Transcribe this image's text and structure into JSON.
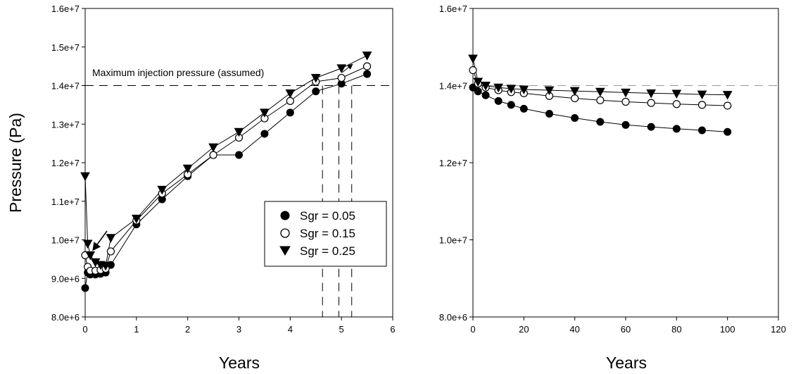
{
  "chart_data": [
    {
      "type": "scatter",
      "xlabel": "Years",
      "ylabel": "Pressure (Pa)",
      "xlim": [
        0,
        6
      ],
      "ylim": [
        8000000,
        16000000
      ],
      "xticks": [
        "0",
        "1",
        "2",
        "3",
        "4",
        "5",
        "6"
      ],
      "yticks": [
        "8.0e+6",
        "9.0e+6",
        "1.0e+7",
        "1.1e+7",
        "1.2e+7",
        "1.3e+7",
        "1.4e+7",
        "1.5e+7",
        "1.6e+7"
      ],
      "annotation": "Maximum injection pressure (assumed)",
      "reference_line": 14000000,
      "vertical_markers": [
        4.63,
        4.95,
        5.2
      ],
      "legend_position": "right-middle",
      "series": [
        {
          "name": "Sgr = 0.05",
          "marker": "filled-circle",
          "x": [
            0,
            0.05,
            0.1,
            0.2,
            0.3,
            0.4,
            0.5,
            1,
            1.5,
            2,
            2.5,
            3,
            3.5,
            4,
            4.5,
            5,
            5.5
          ],
          "y": [
            8750000,
            9150000,
            9100000,
            9100000,
            9120000,
            9150000,
            9350000,
            10400000,
            11050000,
            11650000,
            12200000,
            12200000,
            12750000,
            13300000,
            13850000,
            14050000,
            14300000
          ]
        },
        {
          "name": "Sgr = 0.15",
          "marker": "open-circle",
          "x": [
            0,
            0.05,
            0.1,
            0.2,
            0.3,
            0.4,
            0.5,
            1,
            1.5,
            2,
            2.5,
            3,
            3.5,
            4,
            4.5,
            5,
            5.5
          ],
          "y": [
            9600000,
            9300000,
            9200000,
            9200000,
            9220000,
            9250000,
            9700000,
            10500000,
            11200000,
            11700000,
            12200000,
            12650000,
            13150000,
            13600000,
            14100000,
            14200000,
            14500000
          ]
        },
        {
          "name": "Sgr = 0.25",
          "marker": "filled-triangle-down",
          "x": [
            0,
            0.05,
            0.1,
            0.2,
            0.3,
            0.4,
            0.5,
            1,
            1.5,
            2,
            2.5,
            3,
            3.5,
            4,
            4.5,
            5,
            5.5
          ],
          "y": [
            11650000,
            9900000,
            9600000,
            9420000,
            9350000,
            9330000,
            10050000,
            10550000,
            11300000,
            11850000,
            12400000,
            12800000,
            13300000,
            13800000,
            14200000,
            14450000,
            14780000
          ]
        }
      ]
    },
    {
      "type": "scatter",
      "xlabel": "Years",
      "ylabel": "",
      "xlim": [
        0,
        120
      ],
      "ylim": [
        8000000,
        16000000
      ],
      "xticks": [
        "0",
        "20",
        "40",
        "60",
        "80",
        "100",
        "120"
      ],
      "yticks": [
        "8.0e+6",
        "1.0e+7",
        "1.2e+7",
        "1.4e+7",
        "1.6e+7"
      ],
      "reference_line": 14000000,
      "series": [
        {
          "name": "Sgr = 0.05",
          "marker": "filled-circle",
          "x": [
            0,
            2,
            5,
            10,
            15,
            20,
            30,
            40,
            50,
            60,
            70,
            80,
            90,
            100
          ],
          "y": [
            13950000,
            13850000,
            13750000,
            13600000,
            13500000,
            13400000,
            13270000,
            13160000,
            13060000,
            12980000,
            12930000,
            12880000,
            12840000,
            12800000
          ]
        },
        {
          "name": "Sgr = 0.15",
          "marker": "open-circle",
          "x": [
            0,
            2,
            5,
            10,
            15,
            20,
            30,
            40,
            50,
            60,
            70,
            80,
            90,
            100
          ],
          "y": [
            14400000,
            14050000,
            13950000,
            13880000,
            13830000,
            13800000,
            13730000,
            13670000,
            13620000,
            13580000,
            13550000,
            13520000,
            13500000,
            13480000
          ]
        },
        {
          "name": "Sgr = 0.25",
          "marker": "filled-triangle-down",
          "x": [
            0,
            2,
            5,
            10,
            15,
            20,
            30,
            40,
            50,
            60,
            70,
            80,
            90,
            100
          ],
          "y": [
            14700000,
            14100000,
            14000000,
            13950000,
            13920000,
            13900000,
            13880000,
            13860000,
            13840000,
            13820000,
            13800000,
            13790000,
            13770000,
            13760000
          ]
        }
      ]
    }
  ]
}
